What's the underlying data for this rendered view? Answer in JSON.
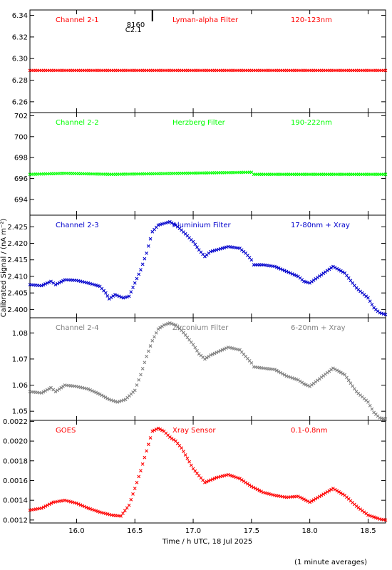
{
  "chart_data": [
    {
      "type": "scatter",
      "channel": "Channel 2-1",
      "filter": "Lyman-alpha Filter",
      "band": "120-123nm",
      "color": "#ff0000",
      "ylim": [
        6.25,
        6.345
      ],
      "yticks": [
        "6.26",
        "6.28",
        "6.30",
        "6.32",
        "6.34"
      ],
      "event_marker": {
        "x": 16.65,
        "label_top": "8160",
        "label_bottom": "C2.1"
      },
      "series": [
        {
          "values": [
            [
              15.6,
              6.289
            ],
            [
              18.65,
              6.289
            ]
          ]
        }
      ]
    },
    {
      "type": "scatter",
      "channel": "Channel 2-2",
      "filter": "Herzberg Filter",
      "band": "190-222nm",
      "color": "#00ff00",
      "ylim": [
        692.5,
        702.3
      ],
      "yticks": [
        "694",
        "696",
        "698",
        "700",
        "702"
      ],
      "series": [
        {
          "values": [
            [
              15.6,
              696.4
            ],
            [
              15.9,
              696.5
            ],
            [
              16.3,
              696.4
            ],
            [
              17.5,
              696.6
            ],
            [
              17.52,
              696.4
            ],
            [
              18.65,
              696.4
            ]
          ]
        }
      ]
    },
    {
      "type": "scatter",
      "channel": "Channel 2-3",
      "filter": "Aluminium Filter",
      "band": "17-80nm + Xray",
      "color": "#0000cc",
      "ylim": [
        2.3975,
        2.4285
      ],
      "yticks": [
        "2.400",
        "2.405",
        "2.410",
        "2.415",
        "2.420",
        "2.425"
      ],
      "series": [
        {
          "values": [
            [
              15.6,
              2.4075
            ],
            [
              15.7,
              2.4072
            ],
            [
              15.78,
              2.4085
            ],
            [
              15.82,
              2.4075
            ],
            [
              15.9,
              2.409
            ],
            [
              16.0,
              2.4088
            ],
            [
              16.1,
              2.408
            ],
            [
              16.2,
              2.407
            ],
            [
              16.25,
              2.405
            ],
            [
              16.28,
              2.4032
            ],
            [
              16.33,
              2.4045
            ],
            [
              16.4,
              2.4035
            ],
            [
              16.45,
              2.404
            ],
            [
              16.5,
              2.408
            ],
            [
              16.55,
              2.412
            ],
            [
              16.6,
              2.417
            ],
            [
              16.65,
              2.4235
            ],
            [
              16.7,
              2.4255
            ],
            [
              16.75,
              2.426
            ],
            [
              16.8,
              2.4265
            ],
            [
              16.85,
              2.4255
            ],
            [
              16.9,
              2.424
            ],
            [
              17.0,
              2.4205
            ],
            [
              17.05,
              2.418
            ],
            [
              17.1,
              2.416
            ],
            [
              17.15,
              2.4175
            ],
            [
              17.2,
              2.418
            ],
            [
              17.3,
              2.419
            ],
            [
              17.4,
              2.4185
            ],
            [
              17.45,
              2.417
            ],
            [
              17.5,
              2.415
            ],
            [
              17.52,
              2.4135
            ],
            [
              17.6,
              2.4135
            ],
            [
              17.7,
              2.413
            ],
            [
              17.8,
              2.4115
            ],
            [
              17.9,
              2.41
            ],
            [
              17.95,
              2.4085
            ],
            [
              18.0,
              2.408
            ],
            [
              18.1,
              2.4105
            ],
            [
              18.2,
              2.413
            ],
            [
              18.3,
              2.411
            ],
            [
              18.4,
              2.4065
            ],
            [
              18.5,
              2.4035
            ],
            [
              18.55,
              2.4005
            ],
            [
              18.6,
              2.399
            ],
            [
              18.65,
              2.3985
            ]
          ]
        }
      ]
    },
    {
      "type": "scatter",
      "channel": "Channel 2-4",
      "filter": "Zirconium Filter",
      "band": "6-20nm + Xray",
      "color": "#808080",
      "ylim": [
        1.0465,
        1.0858
      ],
      "yticks": [
        "1.05",
        "1.06",
        "1.07",
        "1.08"
      ],
      "series": [
        {
          "values": [
            [
              15.6,
              1.0575
            ],
            [
              15.7,
              1.057
            ],
            [
              15.78,
              1.059
            ],
            [
              15.82,
              1.0575
            ],
            [
              15.9,
              1.06
            ],
            [
              16.0,
              1.0595
            ],
            [
              16.1,
              1.0585
            ],
            [
              16.2,
              1.0565
            ],
            [
              16.28,
              1.0545
            ],
            [
              16.35,
              1.0535
            ],
            [
              16.42,
              1.0545
            ],
            [
              16.5,
              1.058
            ],
            [
              16.55,
              1.064
            ],
            [
              16.6,
              1.071
            ],
            [
              16.65,
              1.077
            ],
            [
              16.7,
              1.0815
            ],
            [
              16.75,
              1.083
            ],
            [
              16.8,
              1.0838
            ],
            [
              16.85,
              1.083
            ],
            [
              16.9,
              1.081
            ],
            [
              17.0,
              1.0755
            ],
            [
              17.05,
              1.072
            ],
            [
              17.1,
              1.07
            ],
            [
              17.15,
              1.0715
            ],
            [
              17.2,
              1.0725
            ],
            [
              17.3,
              1.0745
            ],
            [
              17.4,
              1.0735
            ],
            [
              17.45,
              1.071
            ],
            [
              17.5,
              1.0685
            ],
            [
              17.52,
              1.067
            ],
            [
              17.6,
              1.0665
            ],
            [
              17.7,
              1.066
            ],
            [
              17.8,
              1.0635
            ],
            [
              17.9,
              1.062
            ],
            [
              17.95,
              1.0605
            ],
            [
              18.0,
              1.0595
            ],
            [
              18.1,
              1.063
            ],
            [
              18.2,
              1.0665
            ],
            [
              18.3,
              1.064
            ],
            [
              18.4,
              1.0575
            ],
            [
              18.5,
              1.0535
            ],
            [
              18.55,
              1.0495
            ],
            [
              18.6,
              1.0475
            ],
            [
              18.65,
              1.047
            ]
          ]
        }
      ]
    },
    {
      "type": "scatter",
      "channel": "GOES",
      "filter": "Xray Sensor",
      "band": "0.1-0.8nm",
      "color": "#ff0000",
      "ylim": [
        0.00117,
        0.00221
      ],
      "yticks": [
        "0.0012",
        "0.0014",
        "0.0016",
        "0.0018",
        "0.0020",
        "0.0022"
      ],
      "xlim": [
        15.6,
        18.65
      ],
      "xticks": [
        "16.0",
        "16.5",
        "17.0",
        "17.5",
        "18.0",
        "18.5"
      ],
      "series": [
        {
          "values": [
            [
              15.6,
              0.0013
            ],
            [
              15.7,
              0.00132
            ],
            [
              15.8,
              0.00138
            ],
            [
              15.9,
              0.0014
            ],
            [
              16.0,
              0.00137
            ],
            [
              16.1,
              0.00132
            ],
            [
              16.2,
              0.00128
            ],
            [
              16.3,
              0.00125
            ],
            [
              16.38,
              0.00124
            ],
            [
              16.45,
              0.00135
            ],
            [
              16.5,
              0.00152
            ],
            [
              16.55,
              0.0017
            ],
            [
              16.6,
              0.0019
            ],
            [
              16.65,
              0.0021
            ],
            [
              16.7,
              0.00213
            ],
            [
              16.75,
              0.0021
            ],
            [
              16.8,
              0.00204
            ],
            [
              16.85,
              0.002
            ],
            [
              16.9,
              0.00193
            ],
            [
              17.0,
              0.00172
            ],
            [
              17.1,
              0.00158
            ],
            [
              17.2,
              0.00163
            ],
            [
              17.3,
              0.00166
            ],
            [
              17.4,
              0.00162
            ],
            [
              17.5,
              0.00154
            ],
            [
              17.6,
              0.00148
            ],
            [
              17.7,
              0.00145
            ],
            [
              17.8,
              0.00143
            ],
            [
              17.9,
              0.00144
            ],
            [
              18.0,
              0.00138
            ],
            [
              18.1,
              0.00145
            ],
            [
              18.2,
              0.00152
            ],
            [
              18.3,
              0.00145
            ],
            [
              18.4,
              0.00134
            ],
            [
              18.5,
              0.00125
            ],
            [
              18.6,
              0.00121
            ],
            [
              18.65,
              0.0012
            ]
          ]
        }
      ]
    }
  ],
  "ylabel": "Calibrated Signal / (nA m⁻²)",
  "xlabel": "Time / h UTC, 18 Jul 2025",
  "footnote": "(1 minute averages)"
}
